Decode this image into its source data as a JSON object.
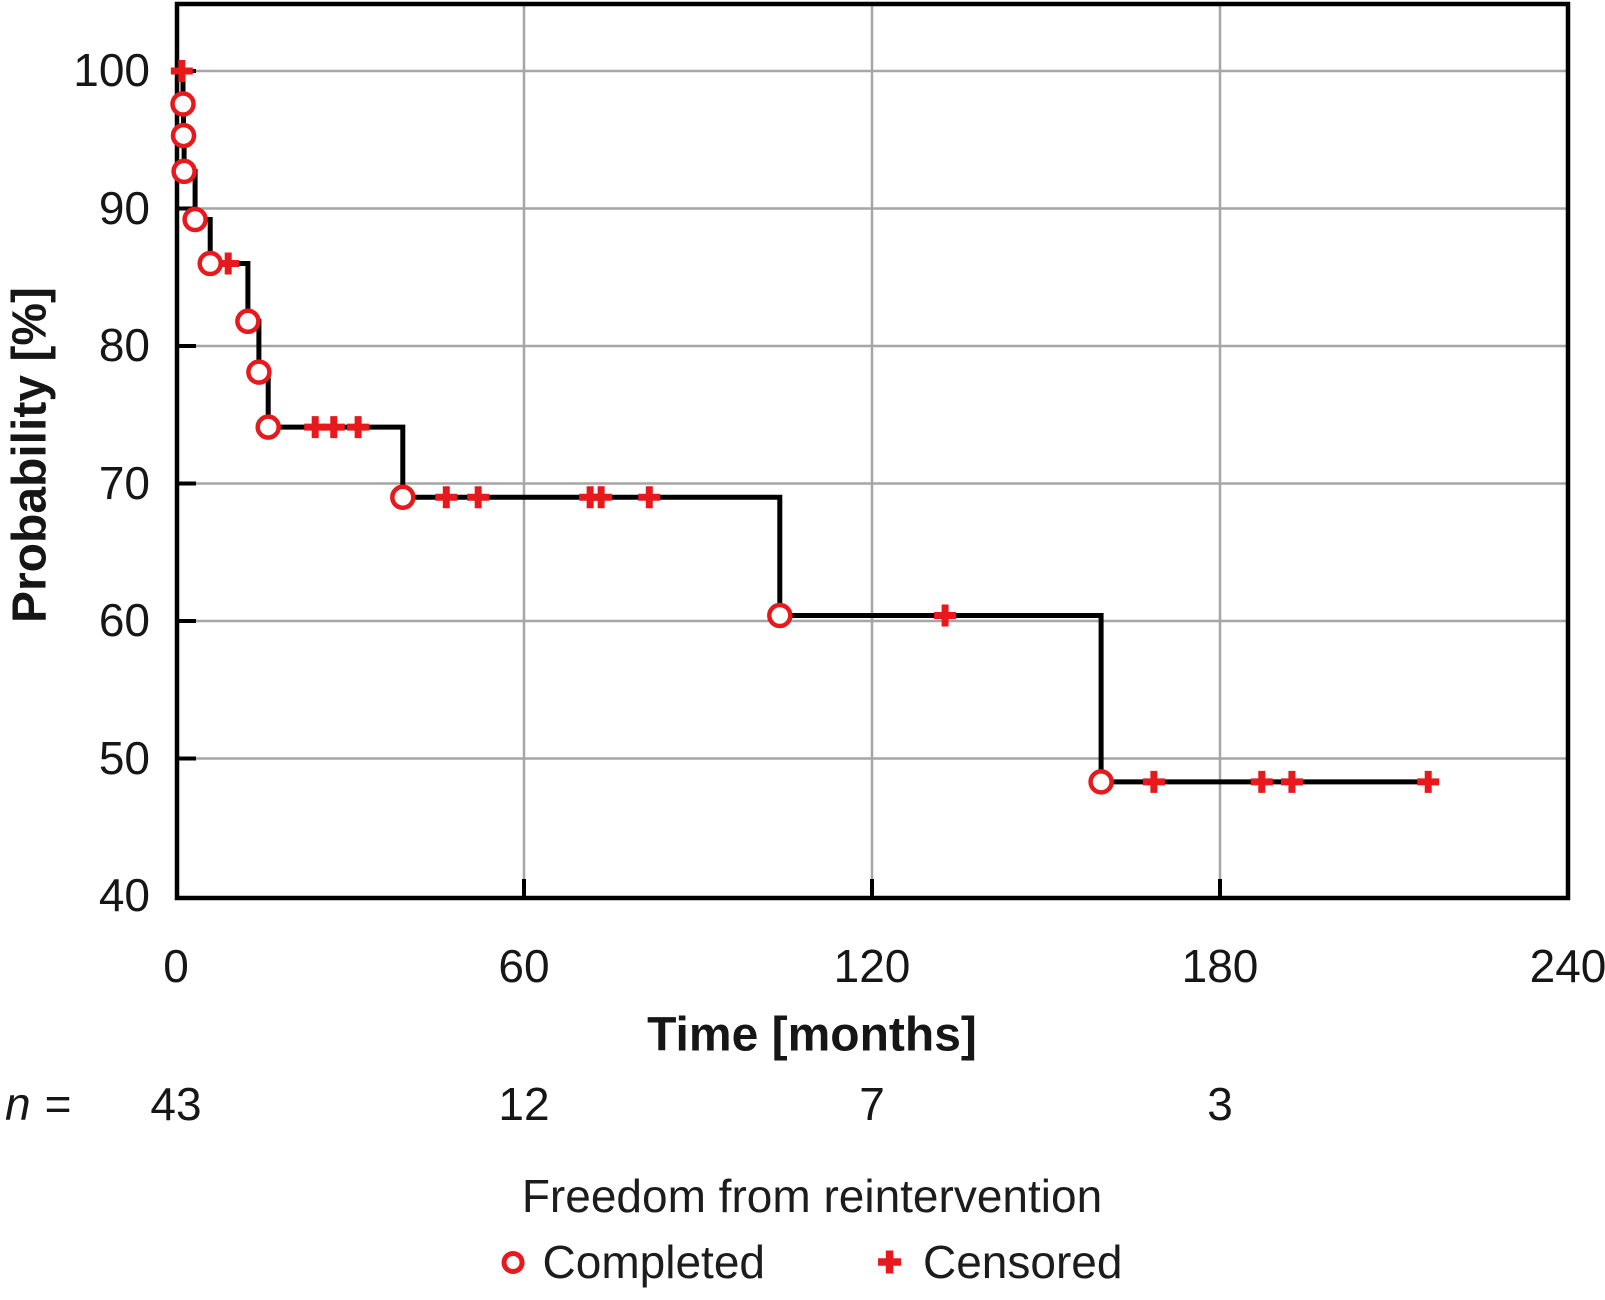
{
  "chart_data": {
    "type": "line",
    "subtype": "kaplan-meier-step",
    "title": "Freedom from reintervention",
    "xlabel": "Time [months]",
    "ylabel": "Probability [%]",
    "xlim": [
      0,
      240
    ],
    "ylim": [
      40,
      105
    ],
    "grid": true,
    "x_ticks": [
      0,
      60,
      120,
      180,
      240
    ],
    "y_ticks": [
      40,
      50,
      60,
      70,
      80,
      90,
      100
    ],
    "start": {
      "t": 0,
      "s": 100
    },
    "drops": [
      {
        "t": 1.2,
        "s": 97.6
      },
      {
        "t": 1.3,
        "s": 95.3
      },
      {
        "t": 1.4,
        "s": 92.7
      },
      {
        "t": 3.3,
        "s": 89.2
      },
      {
        "t": 5.9,
        "s": 86.0
      },
      {
        "t": 12.4,
        "s": 81.8
      },
      {
        "t": 14.3,
        "s": 78.1
      },
      {
        "t": 15.9,
        "s": 74.1
      },
      {
        "t": 39.1,
        "s": 69.0
      },
      {
        "t": 104.1,
        "s": 60.4
      },
      {
        "t": 159.5,
        "s": 48.3
      }
    ],
    "end_time": 216,
    "censored": [
      {
        "t": 1.0,
        "s": 100
      },
      {
        "t": 9.0,
        "s": 86.0
      },
      {
        "t": 24.0,
        "s": 74.1
      },
      {
        "t": 27.2,
        "s": 74.1
      },
      {
        "t": 31.4,
        "s": 74.1
      },
      {
        "t": 46.6,
        "s": 69.0
      },
      {
        "t": 52.1,
        "s": 69.0
      },
      {
        "t": 71.4,
        "s": 69.0
      },
      {
        "t": 73.3,
        "s": 69.0
      },
      {
        "t": 81.6,
        "s": 69.0
      },
      {
        "t": 132.6,
        "s": 60.4
      },
      {
        "t": 168.6,
        "s": 48.3
      },
      {
        "t": 187.2,
        "s": 48.3
      },
      {
        "t": 192.4,
        "s": 48.3
      },
      {
        "t": 215.9,
        "s": 48.3
      }
    ],
    "at_risk": {
      "prefix_n": "n",
      "prefix_eq": "=",
      "times": [
        0,
        60,
        120,
        180
      ],
      "counts": [
        43,
        12,
        7,
        3
      ]
    },
    "legend": [
      {
        "label": "Completed",
        "marker": "circle"
      },
      {
        "label": "Censored",
        "marker": "plus"
      }
    ],
    "colors": {
      "curve": "#000000",
      "marker": "#e8191c",
      "grid": "#a6a6a6",
      "frame": "#000000",
      "text": "#161616"
    }
  }
}
